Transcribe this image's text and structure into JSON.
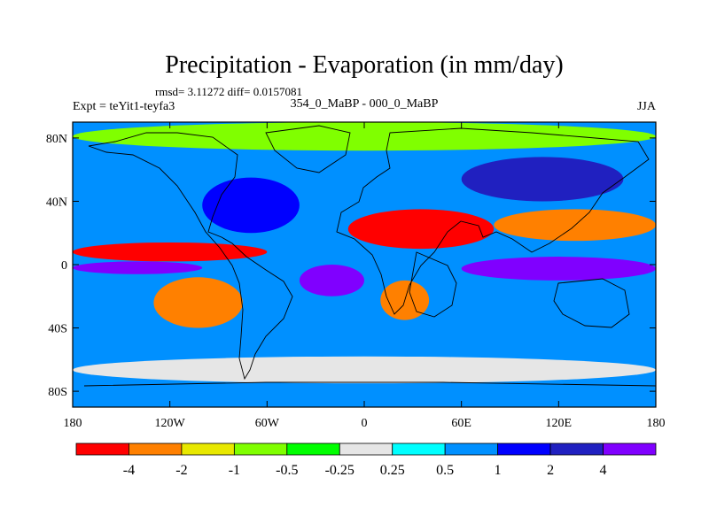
{
  "chart_data": {
    "type": "heatmap",
    "title": "Precipitation - Evaporation (in mm/day)",
    "subtitle": "rmsd= 3.11272 diff= 0.0157081",
    "left_string": "Expt = teYit1-teyfa3",
    "center_string": "354_0_MaBP - 000_0_MaBP",
    "right_string": "JJA",
    "x_ticks": [
      "180",
      "120W",
      "60W",
      "0",
      "60E",
      "120E",
      "180"
    ],
    "y_ticks": [
      "80N",
      "40N",
      "0",
      "40S",
      "80S"
    ],
    "x_range": [
      -180,
      180
    ],
    "y_range": [
      -90,
      90
    ],
    "colorbar": {
      "levels": [
        "-4",
        "-2",
        "-1",
        "-0.5",
        "-0.25",
        "0.25",
        "0.5",
        "1",
        "2",
        "4"
      ],
      "colors": [
        "#ff0000",
        "#ff8000",
        "#e8e800",
        "#80ff00",
        "#00ff00",
        "#e6e6e6",
        "#00ffff",
        "#0090ff",
        "#0000ff",
        "#2020c0",
        "#8000ff"
      ]
    },
    "regions": [
      {
        "lon": [
          -180,
          180
        ],
        "lat": [
          72,
          90
        ],
        "level": 3
      },
      {
        "lon": [
          -180,
          -60
        ],
        "lat": [
          2,
          14
        ],
        "level": 0
      },
      {
        "lon": [
          -180,
          -100
        ],
        "lat": [
          -6,
          2
        ],
        "level": 10
      },
      {
        "lon": [
          -130,
          -75
        ],
        "lat": [
          -40,
          -8
        ],
        "level": 1
      },
      {
        "lon": [
          -40,
          0
        ],
        "lat": [
          -20,
          0
        ],
        "level": 10
      },
      {
        "lon": [
          -10,
          80
        ],
        "lat": [
          10,
          35
        ],
        "level": 0
      },
      {
        "lon": [
          10,
          40
        ],
        "lat": [
          -35,
          -10
        ],
        "level": 1
      },
      {
        "lon": [
          60,
          180
        ],
        "lat": [
          -10,
          5
        ],
        "level": 10
      },
      {
        "lon": [
          80,
          180
        ],
        "lat": [
          15,
          35
        ],
        "level": 1
      },
      {
        "lon": [
          -180,
          180
        ],
        "lat": [
          -75,
          -58
        ],
        "level": 5
      },
      {
        "lon": [
          -100,
          -40
        ],
        "lat": [
          20,
          55
        ],
        "level": 8
      },
      {
        "lon": [
          60,
          160
        ],
        "lat": [
          40,
          68
        ],
        "level": 9
      }
    ]
  }
}
